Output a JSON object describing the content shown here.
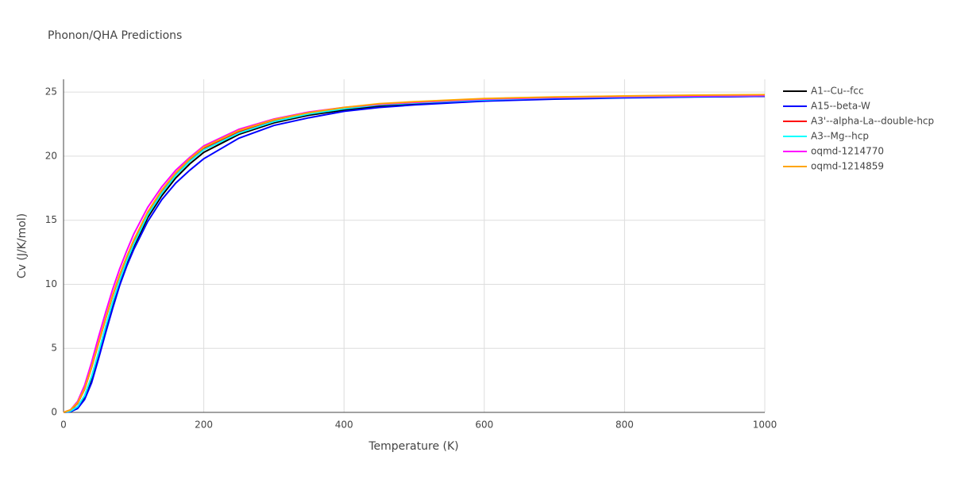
{
  "chart_data": {
    "type": "line",
    "title": "Phonon/QHA Predictions",
    "x_label": "Temperature (K)",
    "y_label": "Cv (J/K/mol)",
    "x": [
      0,
      10,
      20,
      30,
      40,
      50,
      60,
      70,
      80,
      90,
      100,
      120,
      140,
      160,
      180,
      200,
      250,
      300,
      350,
      400,
      450,
      500,
      600,
      700,
      800,
      900,
      1000
    ],
    "series": [
      {
        "name": "A1--Cu--fcc",
        "color": "#000000",
        "values": [
          0,
          0.05,
          0.35,
          1.1,
          2.5,
          4.4,
          6.4,
          8.3,
          10.1,
          11.6,
          12.9,
          15.2,
          16.9,
          18.3,
          19.4,
          20.3,
          21.7,
          22.6,
          23.2,
          23.6,
          23.9,
          24.1,
          24.35,
          24.5,
          24.58,
          24.64,
          24.68
        ]
      },
      {
        "name": "A15--beta-W",
        "color": "#0000ff",
        "values": [
          0,
          0.05,
          0.3,
          1.0,
          2.3,
          4.2,
          6.2,
          8.1,
          9.9,
          11.4,
          12.7,
          14.9,
          16.6,
          17.9,
          18.9,
          19.8,
          21.4,
          22.4,
          23.0,
          23.5,
          23.8,
          24.0,
          24.3,
          24.45,
          24.55,
          24.62,
          24.68
        ]
      },
      {
        "name": "A3'--alpha-La--double-hcp",
        "color": "#ff0000",
        "values": [
          0,
          0.15,
          0.7,
          1.8,
          3.5,
          5.4,
          7.3,
          9.1,
          10.7,
          12.1,
          13.4,
          15.6,
          17.3,
          18.6,
          19.7,
          20.6,
          21.9,
          22.8,
          23.35,
          23.75,
          24.05,
          24.2,
          24.45,
          24.6,
          24.68,
          24.74,
          24.78
        ]
      },
      {
        "name": "A3--Mg--hcp",
        "color": "#00ffff",
        "values": [
          0,
          0.1,
          0.45,
          1.3,
          2.8,
          4.7,
          6.7,
          8.6,
          10.3,
          11.8,
          13.1,
          15.4,
          17.1,
          18.5,
          19.6,
          20.5,
          21.8,
          22.7,
          23.3,
          23.7,
          24.0,
          24.15,
          24.4,
          24.55,
          24.62,
          24.68,
          24.72
        ]
      },
      {
        "name": "oqmd-1214770",
        "color": "#ff00ff",
        "values": [
          0,
          0.2,
          0.85,
          2.1,
          3.9,
          5.9,
          7.8,
          9.6,
          11.2,
          12.6,
          13.9,
          16.0,
          17.6,
          18.9,
          19.9,
          20.8,
          22.1,
          22.9,
          23.45,
          23.8,
          24.05,
          24.2,
          24.45,
          24.58,
          24.65,
          24.7,
          24.74
        ]
      },
      {
        "name": "oqmd-1214859",
        "color": "#ffa500",
        "values": [
          0,
          0.2,
          0.75,
          1.85,
          3.55,
          5.45,
          7.35,
          9.15,
          10.75,
          12.15,
          13.45,
          15.65,
          17.35,
          18.7,
          19.8,
          20.7,
          22.0,
          22.85,
          23.4,
          23.8,
          24.1,
          24.25,
          24.5,
          24.62,
          24.7,
          24.76,
          24.8
        ]
      }
    ],
    "xlim": [
      0,
      1000
    ],
    "xticks": [
      0,
      200,
      400,
      600,
      800,
      1000
    ],
    "ylim": [
      0,
      26
    ],
    "yticks": [
      0,
      5,
      10,
      15,
      20,
      25
    ],
    "grid": true,
    "legend": "right"
  }
}
